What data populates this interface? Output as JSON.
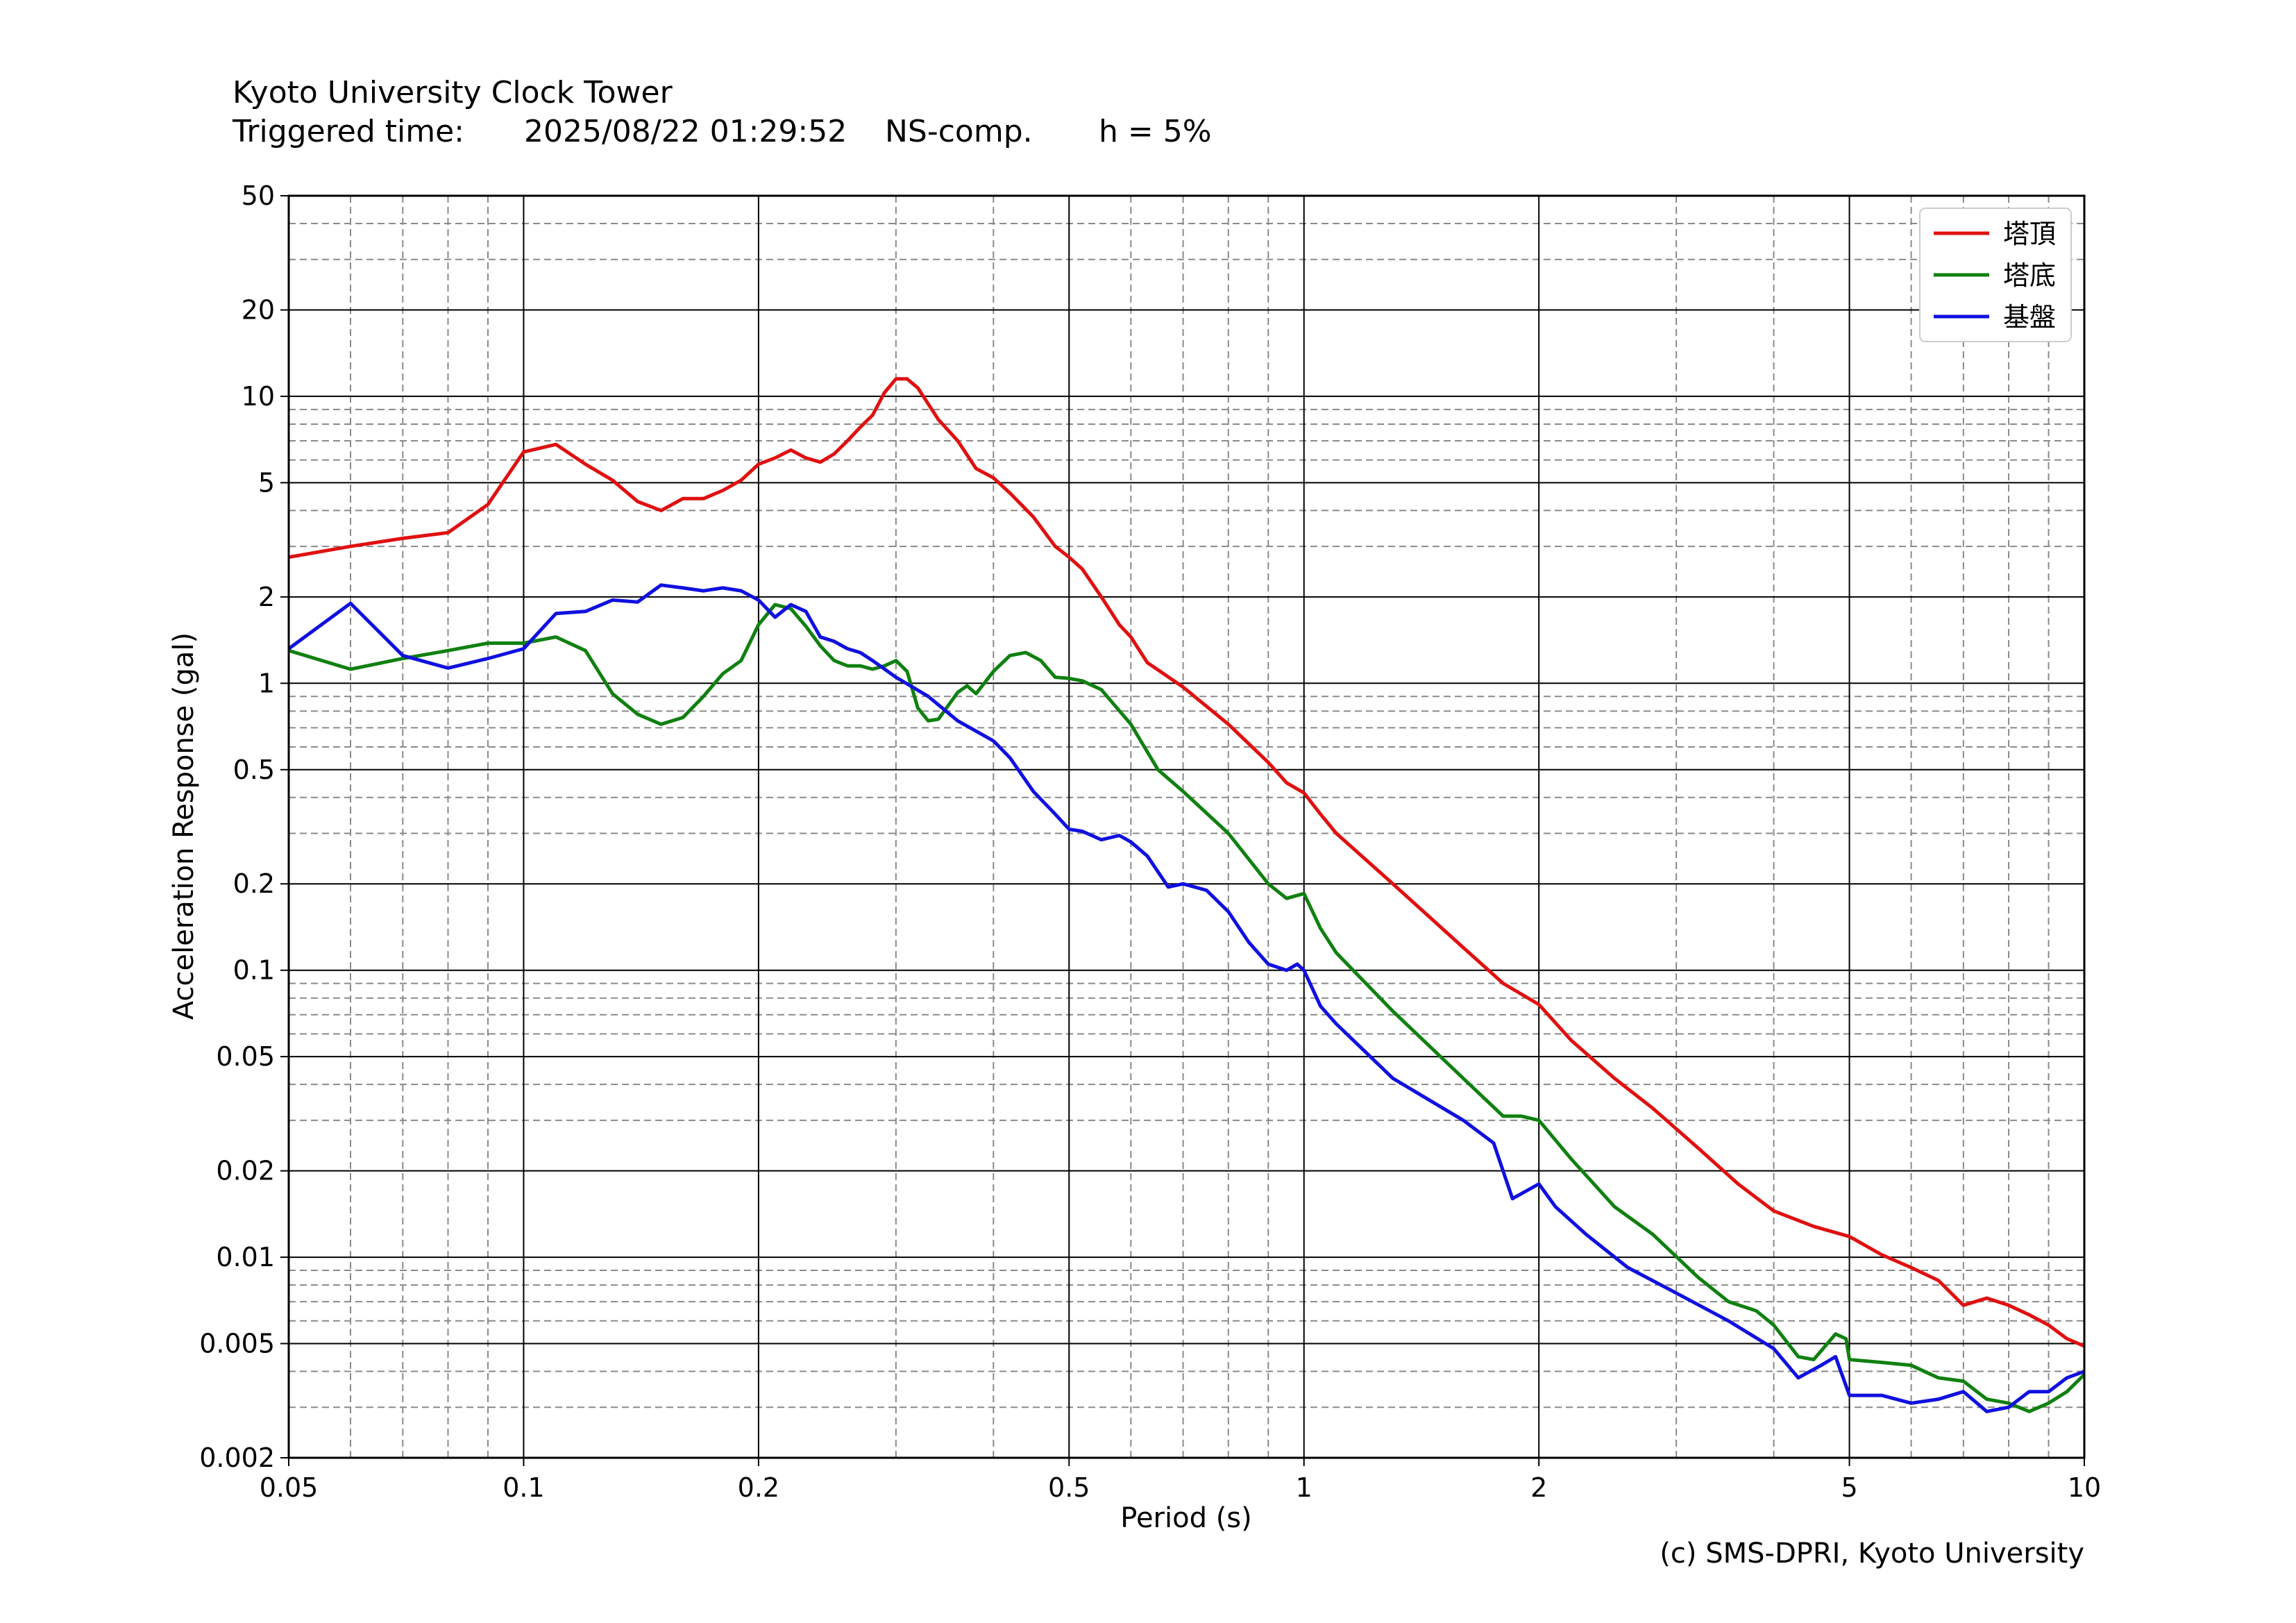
{
  "header": {
    "station": "Kyoto University Clock Tower",
    "triggered_label": "Triggered time:",
    "triggered_time": "2025/08/22 01:29:52",
    "component": "NS-comp.",
    "damping": "h = 5%"
  },
  "footer": {
    "copyright": "(c) SMS-DPRI, Kyoto University"
  },
  "chart_data": {
    "type": "line",
    "title": "",
    "xlabel": "Period (s)",
    "ylabel": "Acceleration Response (gal)",
    "xscale": "log",
    "yscale": "log",
    "xlim": [
      0.05,
      10
    ],
    "ylim": [
      0.002,
      50
    ],
    "xticks": [
      0.05,
      0.1,
      0.2,
      0.5,
      1,
      2,
      5,
      10
    ],
    "xtick_labels": [
      "0.05",
      "0.1",
      "0.2",
      "0.5",
      "1",
      "2",
      "5",
      "10"
    ],
    "yticks": [
      0.002,
      0.005,
      0.01,
      0.02,
      0.05,
      0.1,
      0.2,
      0.5,
      1,
      2,
      5,
      10,
      20,
      50
    ],
    "ytick_labels": [
      "0.002",
      "0.005",
      "0.01",
      "0.02",
      "0.05",
      "0.1",
      "0.2",
      "0.5",
      "1",
      "2",
      "5",
      "10",
      "20",
      "50"
    ],
    "grid": true,
    "legend_position": "top-right",
    "series": [
      {
        "name": "塔頂",
        "color": "#e01010",
        "points": [
          [
            0.05,
            2.75
          ],
          [
            0.06,
            3.0
          ],
          [
            0.07,
            3.2
          ],
          [
            0.08,
            3.35
          ],
          [
            0.09,
            4.2
          ],
          [
            0.1,
            6.4
          ],
          [
            0.11,
            6.8
          ],
          [
            0.12,
            5.8
          ],
          [
            0.13,
            5.1
          ],
          [
            0.14,
            4.3
          ],
          [
            0.15,
            4.0
          ],
          [
            0.16,
            4.4
          ],
          [
            0.17,
            4.4
          ],
          [
            0.18,
            4.7
          ],
          [
            0.19,
            5.1
          ],
          [
            0.2,
            5.8
          ],
          [
            0.21,
            6.1
          ],
          [
            0.22,
            6.5
          ],
          [
            0.23,
            6.1
          ],
          [
            0.24,
            5.9
          ],
          [
            0.25,
            6.3
          ],
          [
            0.26,
            7.0
          ],
          [
            0.27,
            7.8
          ],
          [
            0.28,
            8.6
          ],
          [
            0.29,
            10.3
          ],
          [
            0.3,
            11.5
          ],
          [
            0.31,
            11.5
          ],
          [
            0.32,
            10.7
          ],
          [
            0.34,
            8.3
          ],
          [
            0.36,
            7.0
          ],
          [
            0.38,
            5.6
          ],
          [
            0.4,
            5.2
          ],
          [
            0.42,
            4.6
          ],
          [
            0.45,
            3.8
          ],
          [
            0.48,
            3.0
          ],
          [
            0.5,
            2.75
          ],
          [
            0.52,
            2.5
          ],
          [
            0.55,
            2.0
          ],
          [
            0.58,
            1.6
          ],
          [
            0.6,
            1.45
          ],
          [
            0.63,
            1.18
          ],
          [
            0.7,
            0.97
          ],
          [
            0.8,
            0.72
          ],
          [
            0.9,
            0.53
          ],
          [
            0.95,
            0.45
          ],
          [
            1.0,
            0.415
          ],
          [
            1.05,
            0.35
          ],
          [
            1.1,
            0.3
          ],
          [
            1.3,
            0.2
          ],
          [
            1.6,
            0.12
          ],
          [
            1.8,
            0.09
          ],
          [
            2.0,
            0.076
          ],
          [
            2.2,
            0.057
          ],
          [
            2.5,
            0.042
          ],
          [
            2.8,
            0.033
          ],
          [
            3.2,
            0.024
          ],
          [
            3.6,
            0.018
          ],
          [
            4.0,
            0.0145
          ],
          [
            4.5,
            0.0128
          ],
          [
            5.0,
            0.0118
          ],
          [
            5.5,
            0.0102
          ],
          [
            6.0,
            0.0092
          ],
          [
            6.5,
            0.0083
          ],
          [
            7.0,
            0.0068
          ],
          [
            7.5,
            0.0072
          ],
          [
            8.0,
            0.0068
          ],
          [
            8.5,
            0.0063
          ],
          [
            9.0,
            0.0058
          ],
          [
            9.5,
            0.0052
          ],
          [
            10.0,
            0.0049
          ]
        ]
      },
      {
        "name": "塔底",
        "color": "#108010",
        "points": [
          [
            0.05,
            1.3
          ],
          [
            0.06,
            1.12
          ],
          [
            0.07,
            1.22
          ],
          [
            0.08,
            1.3
          ],
          [
            0.09,
            1.38
          ],
          [
            0.1,
            1.38
          ],
          [
            0.11,
            1.45
          ],
          [
            0.12,
            1.3
          ],
          [
            0.13,
            0.92
          ],
          [
            0.14,
            0.78
          ],
          [
            0.15,
            0.72
          ],
          [
            0.16,
            0.76
          ],
          [
            0.17,
            0.9
          ],
          [
            0.18,
            1.08
          ],
          [
            0.19,
            1.2
          ],
          [
            0.2,
            1.6
          ],
          [
            0.21,
            1.88
          ],
          [
            0.22,
            1.82
          ],
          [
            0.23,
            1.58
          ],
          [
            0.24,
            1.35
          ],
          [
            0.25,
            1.2
          ],
          [
            0.26,
            1.15
          ],
          [
            0.27,
            1.15
          ],
          [
            0.28,
            1.12
          ],
          [
            0.29,
            1.15
          ],
          [
            0.3,
            1.2
          ],
          [
            0.31,
            1.1
          ],
          [
            0.32,
            0.82
          ],
          [
            0.33,
            0.74
          ],
          [
            0.34,
            0.75
          ],
          [
            0.36,
            0.93
          ],
          [
            0.37,
            0.98
          ],
          [
            0.38,
            0.92
          ],
          [
            0.4,
            1.1
          ],
          [
            0.42,
            1.25
          ],
          [
            0.44,
            1.28
          ],
          [
            0.46,
            1.2
          ],
          [
            0.48,
            1.05
          ],
          [
            0.5,
            1.04
          ],
          [
            0.52,
            1.02
          ],
          [
            0.55,
            0.95
          ],
          [
            0.6,
            0.72
          ],
          [
            0.65,
            0.5
          ],
          [
            0.7,
            0.42
          ],
          [
            0.8,
            0.3
          ],
          [
            0.9,
            0.2
          ],
          [
            0.95,
            0.178
          ],
          [
            1.0,
            0.185
          ],
          [
            1.05,
            0.14
          ],
          [
            1.1,
            0.115
          ],
          [
            1.3,
            0.072
          ],
          [
            1.6,
            0.042
          ],
          [
            1.8,
            0.031
          ],
          [
            1.9,
            0.031
          ],
          [
            2.0,
            0.03
          ],
          [
            2.2,
            0.022
          ],
          [
            2.5,
            0.015
          ],
          [
            2.8,
            0.012
          ],
          [
            3.2,
            0.0085
          ],
          [
            3.5,
            0.007
          ],
          [
            3.8,
            0.0065
          ],
          [
            4.0,
            0.0058
          ],
          [
            4.3,
            0.0045
          ],
          [
            4.5,
            0.0044
          ],
          [
            4.8,
            0.0054
          ],
          [
            4.95,
            0.0052
          ],
          [
            5.0,
            0.0044
          ],
          [
            5.5,
            0.0043
          ],
          [
            6.0,
            0.0042
          ],
          [
            6.5,
            0.0038
          ],
          [
            7.0,
            0.0037
          ],
          [
            7.5,
            0.0032
          ],
          [
            8.0,
            0.0031
          ],
          [
            8.5,
            0.0029
          ],
          [
            9.0,
            0.0031
          ],
          [
            9.5,
            0.0034
          ],
          [
            10.0,
            0.0039
          ]
        ]
      },
      {
        "name": "基盤",
        "color": "#1010e0",
        "points": [
          [
            0.05,
            1.32
          ],
          [
            0.06,
            1.9
          ],
          [
            0.07,
            1.25
          ],
          [
            0.08,
            1.13
          ],
          [
            0.09,
            1.22
          ],
          [
            0.1,
            1.32
          ],
          [
            0.11,
            1.75
          ],
          [
            0.12,
            1.78
          ],
          [
            0.13,
            1.95
          ],
          [
            0.14,
            1.92
          ],
          [
            0.15,
            2.2
          ],
          [
            0.16,
            2.15
          ],
          [
            0.17,
            2.1
          ],
          [
            0.18,
            2.15
          ],
          [
            0.19,
            2.1
          ],
          [
            0.2,
            1.95
          ],
          [
            0.21,
            1.7
          ],
          [
            0.22,
            1.88
          ],
          [
            0.23,
            1.78
          ],
          [
            0.24,
            1.45
          ],
          [
            0.25,
            1.4
          ],
          [
            0.26,
            1.32
          ],
          [
            0.27,
            1.28
          ],
          [
            0.28,
            1.2
          ],
          [
            0.3,
            1.05
          ],
          [
            0.33,
            0.9
          ],
          [
            0.36,
            0.74
          ],
          [
            0.4,
            0.63
          ],
          [
            0.42,
            0.55
          ],
          [
            0.45,
            0.42
          ],
          [
            0.48,
            0.35
          ],
          [
            0.5,
            0.31
          ],
          [
            0.52,
            0.305
          ],
          [
            0.55,
            0.285
          ],
          [
            0.58,
            0.295
          ],
          [
            0.6,
            0.28
          ],
          [
            0.63,
            0.25
          ],
          [
            0.67,
            0.195
          ],
          [
            0.7,
            0.2
          ],
          [
            0.75,
            0.19
          ],
          [
            0.8,
            0.16
          ],
          [
            0.85,
            0.125
          ],
          [
            0.9,
            0.105
          ],
          [
            0.95,
            0.1
          ],
          [
            0.98,
            0.105
          ],
          [
            1.0,
            0.1
          ],
          [
            1.05,
            0.075
          ],
          [
            1.1,
            0.065
          ],
          [
            1.3,
            0.042
          ],
          [
            1.6,
            0.03
          ],
          [
            1.75,
            0.025
          ],
          [
            1.85,
            0.016
          ],
          [
            2.0,
            0.018
          ],
          [
            2.1,
            0.015
          ],
          [
            2.3,
            0.012
          ],
          [
            2.6,
            0.0092
          ],
          [
            3.0,
            0.0075
          ],
          [
            3.5,
            0.006
          ],
          [
            4.0,
            0.0048
          ],
          [
            4.3,
            0.0038
          ],
          [
            4.6,
            0.0042
          ],
          [
            4.8,
            0.0045
          ],
          [
            5.0,
            0.0033
          ],
          [
            5.5,
            0.0033
          ],
          [
            6.0,
            0.0031
          ],
          [
            6.5,
            0.0032
          ],
          [
            7.0,
            0.0034
          ],
          [
            7.5,
            0.0029
          ],
          [
            8.0,
            0.003
          ],
          [
            8.5,
            0.0034
          ],
          [
            9.0,
            0.0034
          ],
          [
            9.5,
            0.0038
          ],
          [
            10.0,
            0.004
          ]
        ]
      }
    ]
  }
}
